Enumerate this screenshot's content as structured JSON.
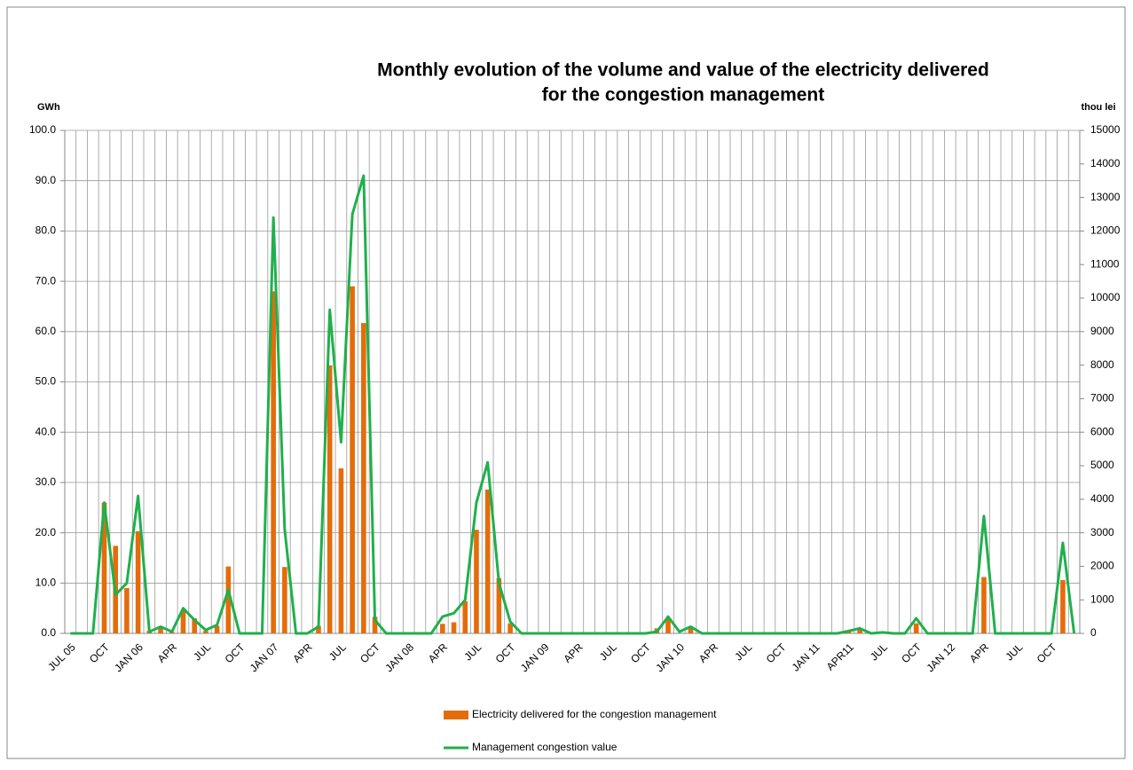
{
  "chart_data": {
    "type": "bar-line",
    "title": "Monthly evolution of the volume and value of the electricity delivered",
    "subtitle": "for the congestion management",
    "y_label": "GWh",
    "y2_label": "thou lei",
    "categories": [
      "JUL 05",
      null,
      null,
      "OCT",
      null,
      null,
      "JAN 06",
      null,
      null,
      "APR",
      null,
      null,
      "JUL",
      null,
      null,
      "OCT",
      null,
      null,
      "JAN 07",
      null,
      null,
      "APR",
      null,
      null,
      "JUL",
      null,
      null,
      "OCT",
      null,
      null,
      "JAN 08",
      null,
      null,
      "APR",
      null,
      null,
      "JUL",
      null,
      null,
      "OCT",
      null,
      null,
      "JAN 09",
      null,
      null,
      "APR",
      null,
      null,
      "JUL",
      null,
      null,
      "OCT",
      null,
      null,
      "JAN 10",
      null,
      null,
      "APR",
      null,
      null,
      "JUL",
      null,
      null,
      "OCT",
      null,
      null,
      "JAN 11",
      null,
      null,
      "APR11",
      null,
      null,
      "JUL",
      null,
      null,
      "OCT",
      null,
      null,
      "JAN 12",
      null,
      null,
      "APR",
      null,
      null,
      "JUL",
      null,
      null,
      "OCT",
      null,
      null
    ],
    "series": [
      {
        "name": "Electricity delivered for the congestion management",
        "type": "bar",
        "color": "#e46c0a",
        "values": [
          0,
          0,
          0,
          26,
          17.4,
          9,
          20.3,
          0.5,
          1,
          0.3,
          4.5,
          3,
          0.5,
          1.5,
          13.3,
          0,
          0,
          0,
          68,
          13.2,
          0,
          0,
          1.5,
          53.3,
          32.8,
          69,
          61.7,
          3.3,
          0,
          0,
          0,
          0,
          0,
          1.9,
          2.2,
          6.4,
          20.6,
          28.6,
          11,
          2,
          0,
          0,
          0,
          0,
          0,
          0,
          0,
          0,
          0,
          0,
          0,
          0,
          1,
          3,
          0,
          1,
          0,
          0,
          0,
          0,
          0,
          0,
          0,
          0,
          0,
          0,
          0,
          0,
          0,
          0.5,
          1,
          0,
          0,
          0,
          0,
          2,
          0,
          0,
          0,
          0,
          0,
          11.2,
          0,
          0,
          0,
          0,
          0,
          0,
          10.6,
          0
        ]
      },
      {
        "name": "Management congestion value",
        "type": "line",
        "axis": "y2",
        "color": "#1fb04c",
        "values": [
          0,
          0,
          0,
          3900,
          1150,
          1500,
          4100,
          50,
          200,
          50,
          750,
          400,
          100,
          250,
          1300,
          0,
          0,
          0,
          12400,
          3100,
          0,
          0,
          200,
          9650,
          5700,
          12500,
          13650,
          400,
          0,
          0,
          0,
          0,
          0,
          500,
          600,
          1000,
          3900,
          5100,
          1500,
          350,
          0,
          0,
          0,
          0,
          0,
          0,
          0,
          0,
          0,
          0,
          0,
          0,
          50,
          500,
          50,
          200,
          0,
          0,
          0,
          0,
          0,
          0,
          0,
          0,
          0,
          0,
          0,
          0,
          0,
          70,
          150,
          0,
          30,
          0,
          0,
          450,
          0,
          0,
          0,
          0,
          0,
          3500,
          0,
          0,
          0,
          0,
          0,
          0,
          2700,
          0
        ]
      }
    ],
    "ylim": [
      0,
      100
    ],
    "yticks": [
      {
        "value": 0,
        "label": "0.0"
      },
      {
        "value": 10,
        "label": "10.0"
      },
      {
        "value": 20,
        "label": "20.0"
      },
      {
        "value": 30,
        "label": "30.0"
      },
      {
        "value": 40,
        "label": "40.0"
      },
      {
        "value": 50,
        "label": "50.0"
      },
      {
        "value": 60,
        "label": "60.0"
      },
      {
        "value": 70,
        "label": "70.0"
      },
      {
        "value": 80,
        "label": "80.0"
      },
      {
        "value": 90,
        "label": "90.0"
      },
      {
        "value": 100,
        "label": "100.0"
      }
    ],
    "y2lim": [
      0,
      15000
    ],
    "y2ticks": [
      0,
      1000,
      2000,
      3000,
      4000,
      5000,
      6000,
      7000,
      8000,
      9000,
      10000,
      11000,
      12000,
      13000,
      14000,
      15000
    ],
    "grid": true,
    "legend": "bottom"
  }
}
